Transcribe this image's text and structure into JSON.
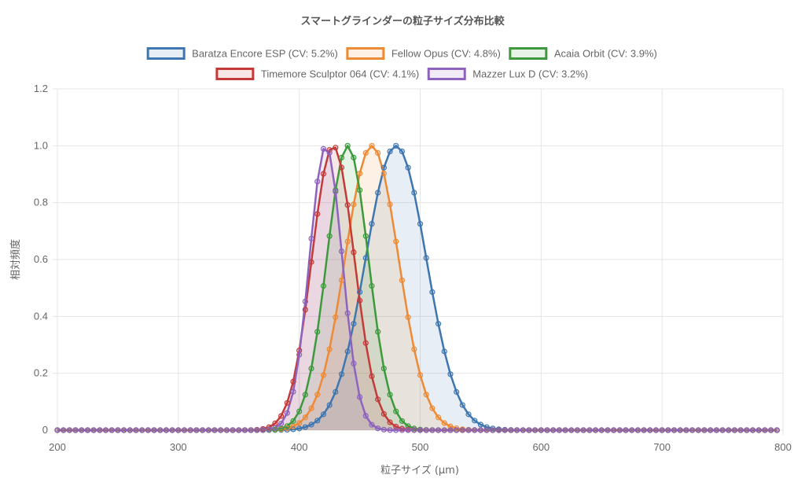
{
  "chart_data": {
    "type": "line",
    "title": "スマートグラインダーの粒子サイズ分布比較",
    "xlabel": "粒子サイズ (μm)",
    "ylabel": "相対頻度",
    "xlim": [
      200,
      800
    ],
    "ylim": [
      0,
      1.2
    ],
    "x_ticks": [
      200,
      300,
      400,
      500,
      600,
      700,
      800
    ],
    "y_ticks": [
      0,
      0.2,
      0.4,
      0.6,
      0.8,
      1.0,
      1.2
    ],
    "y_tick_labels": [
      "0",
      "0.2",
      "0.4",
      "0.6",
      "0.8",
      "1.0",
      "1.2"
    ],
    "grid": true,
    "legend": "top",
    "x_step": 5,
    "series": [
      {
        "name": "Baratza Encore ESP (CV: 5.2%)",
        "peak_x": 480,
        "sigma": 24.96,
        "peak_y": 1.0,
        "color": "#3e76b0",
        "fill": "rgba(62,118,176,0.12)"
      },
      {
        "name": "Fellow Opus (CV: 4.8%)",
        "peak_x": 460,
        "sigma": 22.08,
        "peak_y": 1.0,
        "color": "#ee8a35",
        "fill": "rgba(238,138,53,0.12)"
      },
      {
        "name": "Acaia Orbit (CV: 3.9%)",
        "peak_x": 440,
        "sigma": 17.16,
        "peak_y": 1.0,
        "color": "#3c9a3c",
        "fill": "rgba(60,154,60,0.12)"
      },
      {
        "name": "Timemore Sculptor 064 (CV: 4.1%)",
        "peak_x": 428,
        "sigma": 17.55,
        "peak_y": 1.0,
        "color": "#c43a38",
        "fill": "rgba(196,58,56,0.12)"
      },
      {
        "name": "Mazzer Lux D (CV: 3.2%)",
        "peak_x": 422,
        "sigma": 13.5,
        "peak_y": 1.0,
        "color": "#8d63be",
        "fill": "rgba(141,99,190,0.12)"
      }
    ]
  }
}
